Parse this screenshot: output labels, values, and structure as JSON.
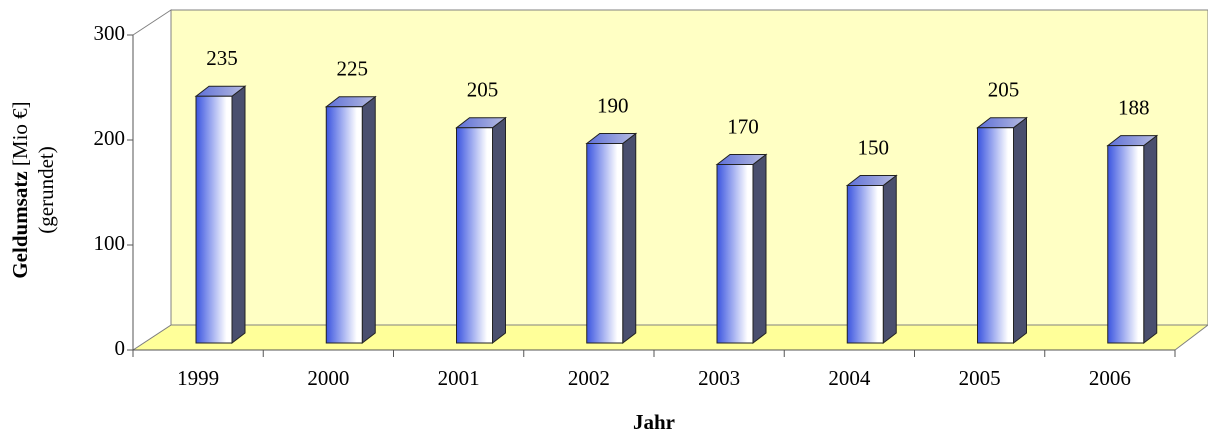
{
  "chart_data": {
    "type": "bar3d",
    "ylabel": [
      "Geldumsatz",
      "[Mio €]",
      "(gerundet)"
    ],
    "xlabel": "Jahr",
    "categories": [
      "1999",
      "2000",
      "2001",
      "2002",
      "2003",
      "2004",
      "2005",
      "2006"
    ],
    "values": [
      235,
      225,
      205,
      190,
      170,
      150,
      205,
      188
    ],
    "color": "#3b55e0",
    "ylim": [
      0,
      300
    ],
    "yticks": [
      0,
      100,
      200,
      300
    ]
  }
}
